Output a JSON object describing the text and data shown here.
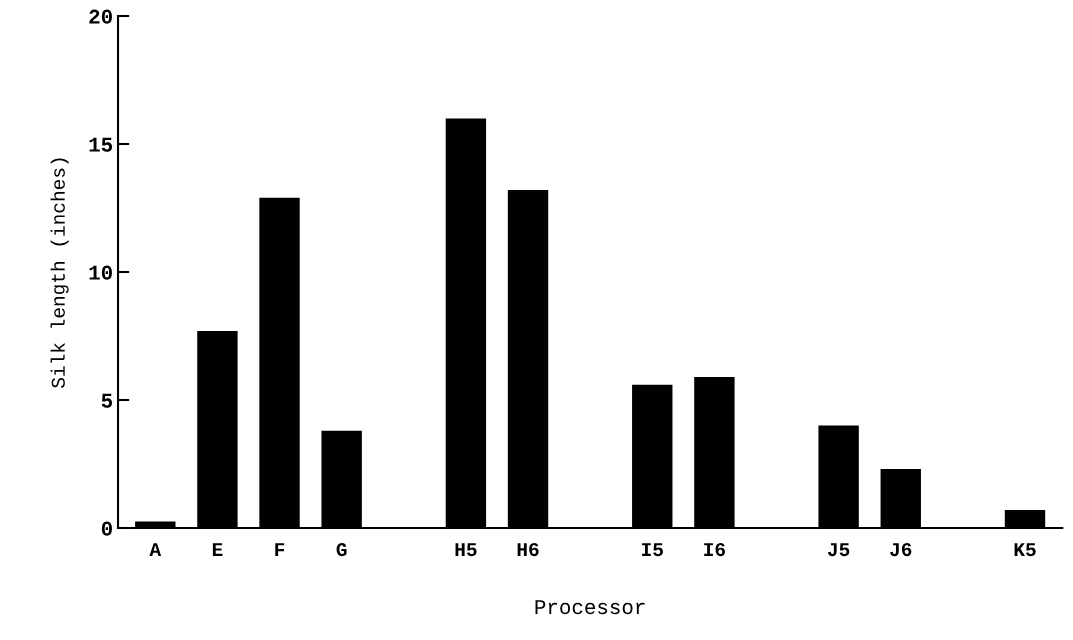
{
  "chart_data": {
    "type": "bar",
    "xlabel": "Processor",
    "ylabel": "Silk length (inches)",
    "categories": [
      "A",
      "E",
      "F",
      "G",
      null,
      "H5",
      "H6",
      null,
      "I5",
      "I6",
      null,
      "J5",
      "J6",
      null,
      "K5"
    ],
    "values": [
      0.25,
      7.7,
      12.9,
      3.8,
      null,
      16.0,
      13.2,
      null,
      5.6,
      5.9,
      null,
      4.0,
      2.3,
      null,
      0.7
    ],
    "color": "#000000",
    "ylim": [
      0,
      20
    ],
    "yticks": [
      0,
      5,
      10,
      15,
      20
    ],
    "grid": false
  }
}
